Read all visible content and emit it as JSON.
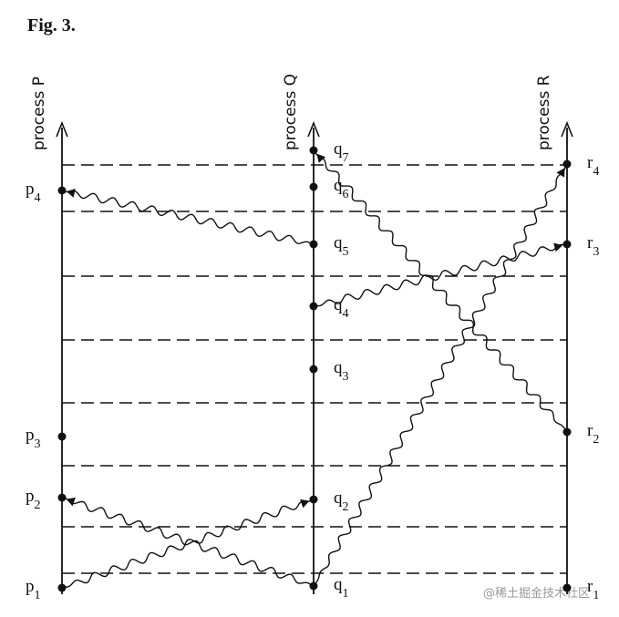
{
  "title": "Fig. 3.",
  "processes": [
    {
      "label": "process P"
    },
    {
      "label": "process Q"
    },
    {
      "label": "process R"
    }
  ],
  "events": [
    {
      "name": "p",
      "sub": "1"
    },
    {
      "name": "p",
      "sub": "2"
    },
    {
      "name": "p",
      "sub": "3"
    },
    {
      "name": "p",
      "sub": "4"
    },
    {
      "name": "q",
      "sub": "1"
    },
    {
      "name": "q",
      "sub": "2"
    },
    {
      "name": "q",
      "sub": "3"
    },
    {
      "name": "q",
      "sub": "4"
    },
    {
      "name": "q",
      "sub": "5"
    },
    {
      "name": "q",
      "sub": "6"
    },
    {
      "name": "q",
      "sub": "7"
    },
    {
      "name": "r",
      "sub": "1"
    },
    {
      "name": "r",
      "sub": "2"
    },
    {
      "name": "r",
      "sub": "3"
    },
    {
      "name": "r",
      "sub": "4"
    }
  ],
  "watermark": "@稀土掘金技术社区"
}
